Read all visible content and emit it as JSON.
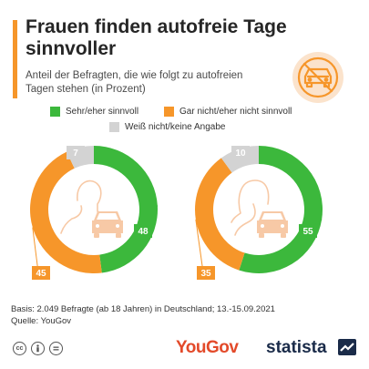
{
  "header": {
    "title": "Frauen finden autofreie Tage sinnvoller",
    "subtitle": "Anteil der Befragten, die wie folgt zu autofreien Tagen stehen (in Prozent)",
    "badge_icon": "no-car-icon"
  },
  "colors": {
    "green": "#3cb83c",
    "orange": "#f6962a",
    "gray": "#d3d3d3",
    "accent": "#f6962a",
    "figure": "#f7c9a6"
  },
  "legend": [
    {
      "label": "Sehr/eher sinnvoll",
      "color": "#3cb83c"
    },
    {
      "label": "Gar nicht/eher nicht sinnvoll",
      "color": "#f6962a"
    },
    {
      "label": "Weiß nicht/keine Angabe",
      "color": "#d3d3d3"
    }
  ],
  "chart_data": [
    {
      "type": "pie",
      "donut": true,
      "icon": "man-with-car-icon",
      "categories": [
        "Sehr/eher sinnvoll",
        "Gar nicht/eher nicht sinnvoll",
        "Weiß nicht/keine Angabe"
      ],
      "values": [
        48,
        45,
        7
      ],
      "colors": [
        "#3cb83c",
        "#f6962a",
        "#d3d3d3"
      ]
    },
    {
      "type": "pie",
      "donut": true,
      "icon": "woman-with-car-icon",
      "categories": [
        "Sehr/eher sinnvoll",
        "Gar nicht/eher nicht sinnvoll",
        "Weiß nicht/keine Angabe"
      ],
      "values": [
        55,
        35,
        10
      ],
      "colors": [
        "#3cb83c",
        "#f6962a",
        "#d3d3d3"
      ]
    }
  ],
  "footer": {
    "basis": "Basis: 2.049 Befragte (ab 18 Jahren) in Deutschland; 13.-15.09.2021",
    "source": "Quelle: YouGov",
    "cc_icons": [
      "creative-commons-icon",
      "attribution-icon",
      "no-derivatives-icon"
    ],
    "yougov_logo": "YouGov",
    "statista_logo": "statista"
  }
}
